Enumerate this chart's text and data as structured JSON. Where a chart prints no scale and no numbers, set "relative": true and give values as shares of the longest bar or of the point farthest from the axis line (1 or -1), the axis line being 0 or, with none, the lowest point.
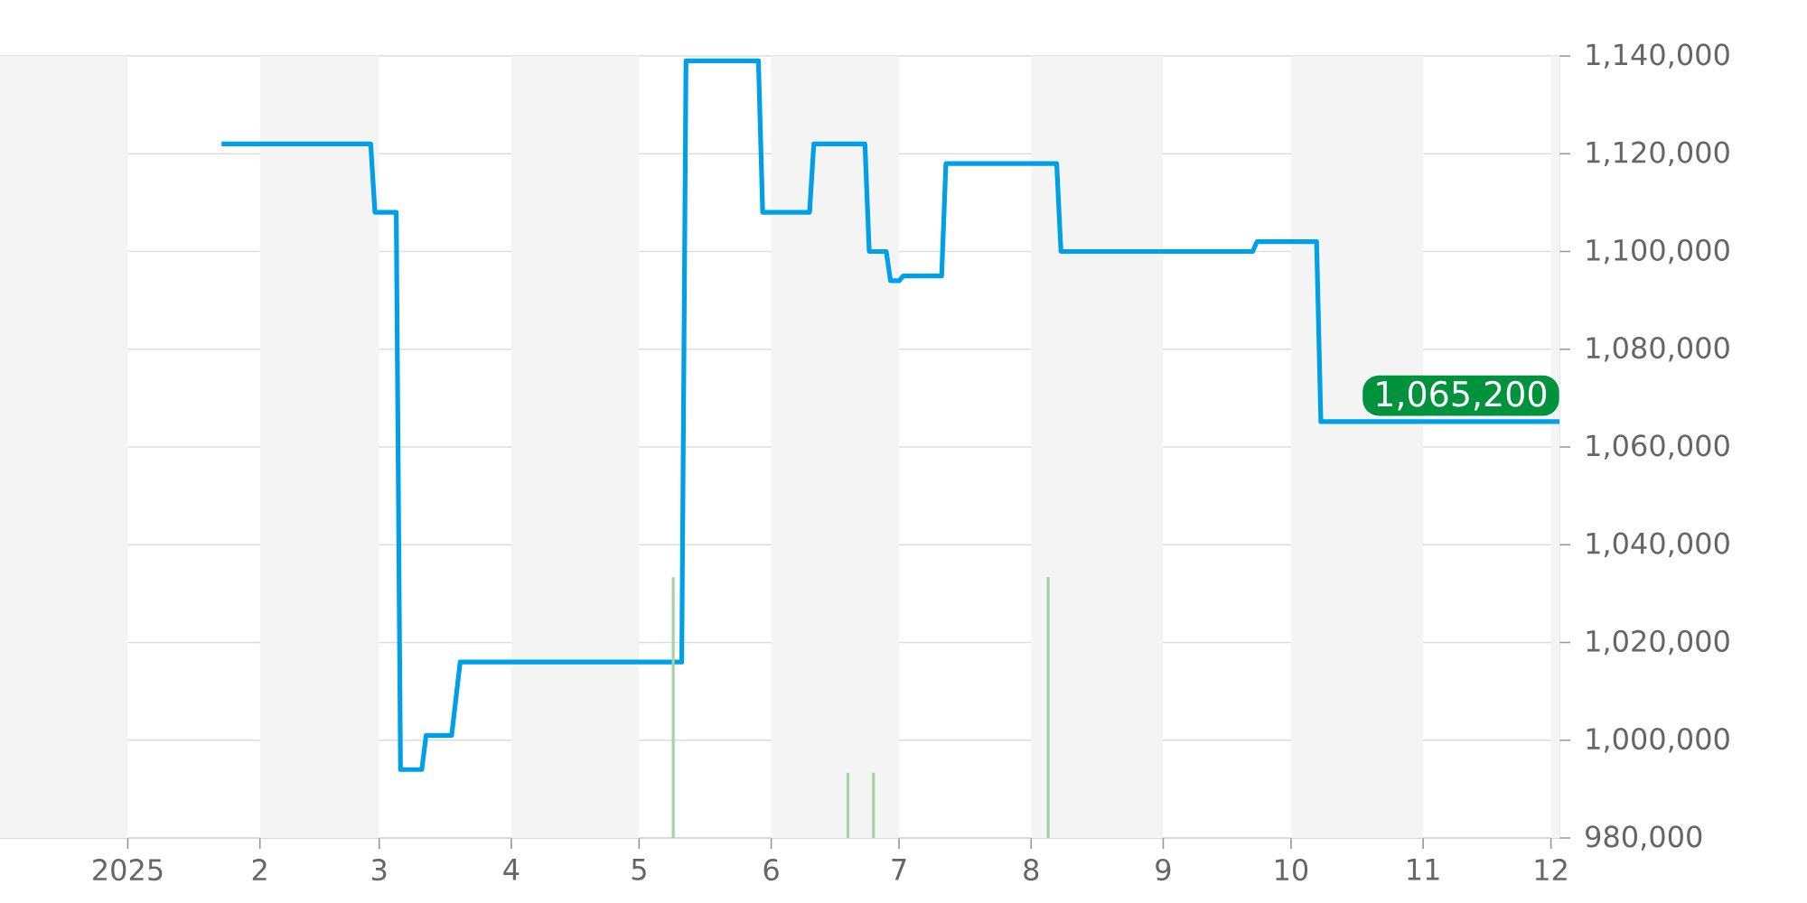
{
  "chart_data": [
    {
      "type": "line",
      "x": [
        "2025-01-23",
        "2025-02-27",
        "2025-02-28",
        "2025-03-05",
        "2025-03-06",
        "2025-03-11",
        "2025-03-12",
        "2025-03-18",
        "2025-03-20",
        "2025-05-11",
        "2025-05-12",
        "2025-05-29",
        "2025-05-30",
        "2025-06-10",
        "2025-06-11",
        "2025-06-23",
        "2025-06-24",
        "2025-06-28",
        "2025-06-29",
        "2025-07-01",
        "2025-07-02",
        "2025-07-11",
        "2025-07-12",
        "2025-08-07",
        "2025-08-08",
        "2025-09-22",
        "2025-09-23",
        "2025-10-07",
        "2025-10-08",
        "2025-12-03"
      ],
      "series": [
        {
          "color": "#00a0e9",
          "values": [
            1122000,
            1122000,
            1108000,
            1108000,
            994000,
            994000,
            1001000,
            1001000,
            1016000,
            1016000,
            1139000,
            1139000,
            1108000,
            1108000,
            1122000,
            1122000,
            1100000,
            1100000,
            1094000,
            1094000,
            1095000,
            1095000,
            1118000,
            1118000,
            1100000,
            1100000,
            1102000,
            1102000,
            1065200,
            1065200
          ]
        }
      ],
      "xlim": [
        "2024-12-02",
        "2025-12-03"
      ],
      "xticks": [
        {
          "value": "2025-01-01",
          "label": "2025"
        },
        {
          "value": "2025-02-01",
          "label": "2"
        },
        {
          "value": "2025-03-01",
          "label": "3"
        },
        {
          "value": "2025-04-01",
          "label": "4"
        },
        {
          "value": "2025-05-01",
          "label": "5"
        },
        {
          "value": "2025-06-01",
          "label": "6"
        },
        {
          "value": "2025-07-01",
          "label": "7"
        },
        {
          "value": "2025-08-01",
          "label": "8"
        },
        {
          "value": "2025-09-01",
          "label": "9"
        },
        {
          "value": "2025-10-01",
          "label": "10"
        },
        {
          "value": "2025-11-01",
          "label": "11"
        },
        {
          "value": "2025-12-01",
          "label": "12"
        }
      ],
      "ylim": [
        980000,
        1140000
      ],
      "yticks": [
        {
          "value": 980000,
          "label": "980,000"
        },
        {
          "value": 1000000,
          "label": "1,000,000"
        },
        {
          "value": 1020000,
          "label": "1,020,000"
        },
        {
          "value": 1040000,
          "label": "1,040,000"
        },
        {
          "value": 1060000,
          "label": "1,060,000"
        },
        {
          "value": 1080000,
          "label": "1,080,000"
        },
        {
          "value": 1100000,
          "label": "1,100,000"
        },
        {
          "value": 1120000,
          "label": "1,120,000"
        },
        {
          "value": 1140000,
          "label": "1,140,000"
        }
      ],
      "grid": "y",
      "bands": [
        {
          "axis": "x",
          "from": "2024-12-02",
          "to": "2025-01-01",
          "color": "#f4f4f4"
        },
        {
          "axis": "x",
          "from": "2025-02-01",
          "to": "2025-03-01",
          "color": "#f4f4f4"
        },
        {
          "axis": "x",
          "from": "2025-04-01",
          "to": "2025-05-01",
          "color": "#f4f4f4"
        },
        {
          "axis": "x",
          "from": "2025-06-01",
          "to": "2025-07-01",
          "color": "#f4f4f4"
        },
        {
          "axis": "x",
          "from": "2025-08-01",
          "to": "2025-09-01",
          "color": "#f4f4f4"
        },
        {
          "axis": "x",
          "from": "2025-10-01",
          "to": "2025-11-01",
          "color": "#f4f4f4"
        },
        {
          "axis": "x",
          "from": "2025-12-01",
          "to": "2025-12-03",
          "color": "#f4f4f4"
        }
      ],
      "annotations": [
        {
          "text": "1,065,200",
          "x": "2025-12-03",
          "y": 1065200
        }
      ]
    },
    {
      "type": "bar",
      "x": [
        "2025-05-09",
        "2025-06-19",
        "2025-06-25",
        "2025-08-05"
      ],
      "values": [
        1,
        0.25,
        0.25,
        1
      ],
      "color": "#a3d3a3",
      "relative": true,
      "xlim": [
        "2024-12-02",
        "2025-12-03"
      ],
      "tick_labels": false
    }
  ]
}
